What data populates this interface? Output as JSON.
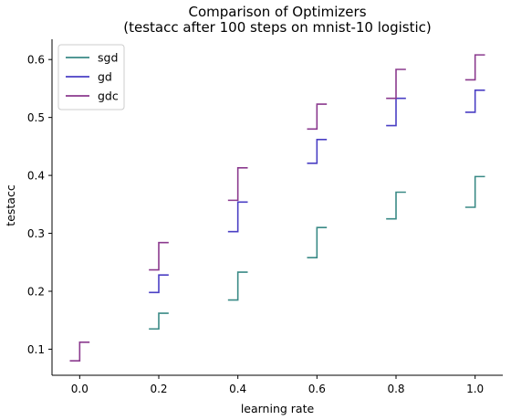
{
  "chart_data": {
    "type": "line",
    "style": "step-intervals",
    "title": "Comparison of Optimizers",
    "subtitle": "(testacc after 100 steps on mnist-10 logistic)",
    "xlabel": "learning rate",
    "ylabel": "testacc",
    "xlim": [
      -0.07,
      1.07
    ],
    "ylim": [
      0.055,
      0.635
    ],
    "xticks": [
      0.0,
      0.2,
      0.4,
      0.6,
      0.8,
      1.0
    ],
    "xtick_labels": [
      "0.0",
      "0.2",
      "0.4",
      "0.6",
      "0.8",
      "1.0"
    ],
    "yticks": [
      0.1,
      0.2,
      0.3,
      0.4,
      0.5,
      0.6
    ],
    "ytick_labels": [
      "0.1",
      "0.2",
      "0.3",
      "0.4",
      "0.5",
      "0.6"
    ],
    "grid": false,
    "legend_position": "top-left",
    "series": [
      {
        "name": "sgd",
        "color": "#3a8a86",
        "points": [
          {
            "x": 0.2,
            "low": 0.135,
            "high": 0.162
          },
          {
            "x": 0.4,
            "low": 0.185,
            "high": 0.233
          },
          {
            "x": 0.6,
            "low": 0.258,
            "high": 0.31
          },
          {
            "x": 0.8,
            "low": 0.325,
            "high": 0.371
          },
          {
            "x": 1.0,
            "low": 0.345,
            "high": 0.398
          }
        ]
      },
      {
        "name": "gd",
        "color": "#4a3fc4",
        "points": [
          {
            "x": 0.2,
            "low": 0.198,
            "high": 0.228
          },
          {
            "x": 0.4,
            "low": 0.303,
            "high": 0.354
          },
          {
            "x": 0.6,
            "low": 0.421,
            "high": 0.462
          },
          {
            "x": 0.8,
            "low": 0.486,
            "high": 0.533
          },
          {
            "x": 1.0,
            "low": 0.509,
            "high": 0.547
          }
        ]
      },
      {
        "name": "gdc",
        "color": "#8b3a8e",
        "points": [
          {
            "x": 0.0,
            "low": 0.08,
            "high": 0.112
          },
          {
            "x": 0.2,
            "low": 0.237,
            "high": 0.284
          },
          {
            "x": 0.4,
            "low": 0.357,
            "high": 0.413
          },
          {
            "x": 0.6,
            "low": 0.48,
            "high": 0.523
          },
          {
            "x": 0.8,
            "low": 0.533,
            "high": 0.583
          },
          {
            "x": 1.0,
            "low": 0.565,
            "high": 0.608
          }
        ]
      }
    ]
  }
}
